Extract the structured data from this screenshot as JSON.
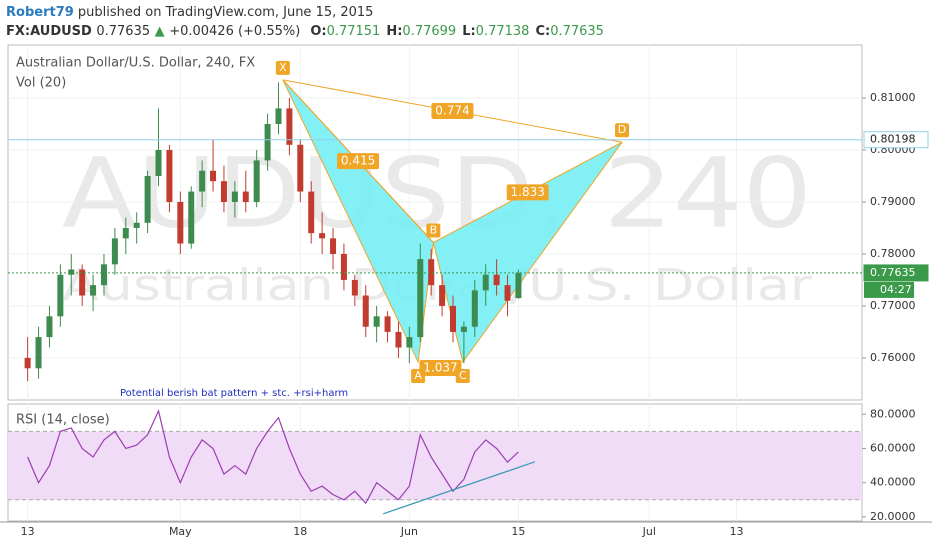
{
  "header": {
    "author": "Robert79",
    "published": "published on TradingView.com, June 15, 2015",
    "symbol": "FX:AUDUSD",
    "last": "0.77635",
    "arrow": "▲",
    "change": "+0.00426 (+0.55%)",
    "ohlc": [
      {
        "label": "O:",
        "value": "0.77151"
      },
      {
        "label": "H:",
        "value": "0.77699"
      },
      {
        "label": "L:",
        "value": "0.77138"
      },
      {
        "label": "C:",
        "value": "0.77635"
      }
    ]
  },
  "chart_data": [
    {
      "type": "candlestick",
      "title": "Australian Dollar/U.S. Dollar, 240, FX",
      "indicator": "Vol (20)",
      "watermark": [
        "AUDUSD, 240",
        "Australian Dollar/U.S. Dollar"
      ],
      "annotation": "Potential berish bat pattern + stc. +rsi+harm",
      "x": [
        0,
        1,
        2,
        3,
        4,
        5,
        6,
        7,
        8,
        9,
        10,
        11,
        12,
        13,
        14,
        15,
        16,
        17,
        18,
        19,
        20,
        21,
        22,
        23,
        24,
        25,
        26,
        27,
        28,
        29,
        30,
        31,
        32,
        33,
        34,
        35,
        36,
        37,
        38,
        39,
        40,
        41,
        42,
        43,
        44,
        45
      ],
      "open": [
        0.76,
        0.758,
        0.764,
        0.768,
        0.776,
        0.777,
        0.772,
        0.774,
        0.778,
        0.783,
        0.785,
        0.786,
        0.795,
        0.8,
        0.79,
        0.782,
        0.792,
        0.796,
        0.794,
        0.79,
        0.792,
        0.79,
        0.798,
        0.805,
        0.808,
        0.801,
        0.792,
        0.784,
        0.783,
        0.78,
        0.775,
        0.772,
        0.766,
        0.768,
        0.765,
        0.762,
        0.764,
        0.779,
        0.774,
        0.77,
        0.765,
        0.766,
        0.773,
        0.776,
        0.774,
        0.7715
      ],
      "high": [
        0.764,
        0.766,
        0.77,
        0.778,
        0.78,
        0.778,
        0.776,
        0.78,
        0.785,
        0.787,
        0.788,
        0.796,
        0.808,
        0.801,
        0.792,
        0.793,
        0.798,
        0.802,
        0.797,
        0.794,
        0.796,
        0.8,
        0.807,
        0.813,
        0.81,
        0.802,
        0.794,
        0.788,
        0.785,
        0.782,
        0.776,
        0.774,
        0.77,
        0.769,
        0.767,
        0.766,
        0.782,
        0.781,
        0.776,
        0.772,
        0.767,
        0.775,
        0.778,
        0.779,
        0.776,
        0.777
      ],
      "low": [
        0.7555,
        0.756,
        0.762,
        0.766,
        0.772,
        0.77,
        0.769,
        0.772,
        0.776,
        0.78,
        0.782,
        0.784,
        0.793,
        0.788,
        0.78,
        0.781,
        0.789,
        0.792,
        0.788,
        0.787,
        0.788,
        0.789,
        0.796,
        0.803,
        0.799,
        0.79,
        0.782,
        0.78,
        0.777,
        0.773,
        0.77,
        0.764,
        0.763,
        0.763,
        0.76,
        0.759,
        0.763,
        0.772,
        0.768,
        0.763,
        0.759,
        0.764,
        0.77,
        0.772,
        0.768,
        0.7714
      ],
      "close": [
        0.758,
        0.764,
        0.768,
        0.776,
        0.777,
        0.772,
        0.774,
        0.778,
        0.783,
        0.785,
        0.786,
        0.795,
        0.8,
        0.79,
        0.782,
        0.792,
        0.796,
        0.794,
        0.79,
        0.792,
        0.79,
        0.798,
        0.805,
        0.808,
        0.801,
        0.792,
        0.784,
        0.783,
        0.78,
        0.775,
        0.772,
        0.766,
        0.768,
        0.765,
        0.762,
        0.764,
        0.779,
        0.774,
        0.77,
        0.765,
        0.766,
        0.773,
        0.776,
        0.774,
        0.771,
        0.77635
      ],
      "up_color": "#3d8b4f",
      "down_color": "#c23b2f",
      "xlim": [
        -1.8,
        76.5
      ],
      "ylim": [
        0.7519,
        0.8202
      ],
      "yticks": [
        {
          "value": 0.76,
          "label": "0.76000"
        },
        {
          "value": 0.77,
          "label": "0.77000"
        },
        {
          "value": 0.78,
          "label": "0.78000"
        },
        {
          "value": 0.79,
          "label": "0.79000"
        },
        {
          "value": 0.8,
          "label": "0.80000"
        },
        {
          "value": 0.81,
          "label": "0.81000"
        }
      ],
      "hlines": [
        {
          "value": 0.80198,
          "color": "#8fd0ea"
        },
        {
          "value": 0.77635,
          "color": "#3a9a4a"
        }
      ],
      "countdown": "04:27",
      "pattern": {
        "fill": "#74eef4",
        "color": "#f0a526",
        "points": [
          {
            "label": "X",
            "x": 23.4,
            "y": 0.8135
          },
          {
            "label": "A",
            "x": 35.8,
            "y": 0.7592
          },
          {
            "label": "B",
            "x": 37.2,
            "y": 0.7822
          },
          {
            "label": "C",
            "x": 39.9,
            "y": 0.7592
          },
          {
            "label": "D",
            "x": 54.5,
            "y": 0.8015
          }
        ],
        "ratios": [
          0.415,
          0.774,
          1.833,
          1.037
        ]
      }
    },
    {
      "type": "line",
      "title": "RSI (14, close)",
      "color": "#9b3fb0",
      "x": [
        0,
        1,
        2,
        3,
        4,
        5,
        6,
        7,
        8,
        9,
        10,
        11,
        12,
        13,
        14,
        15,
        16,
        17,
        18,
        19,
        20,
        21,
        22,
        23,
        24,
        25,
        26,
        27,
        28,
        29,
        30,
        31,
        32,
        33,
        34,
        35,
        36,
        37,
        38,
        39,
        40,
        41,
        42,
        43,
        44,
        45
      ],
      "values": [
        55,
        40,
        50,
        70,
        72,
        60,
        55,
        65,
        70,
        60,
        62,
        68,
        82,
        55,
        40,
        55,
        65,
        60,
        45,
        50,
        45,
        60,
        70,
        78,
        60,
        45,
        35,
        38,
        33,
        30,
        35,
        28,
        40,
        35,
        30,
        38,
        68,
        55,
        45,
        35,
        42,
        58,
        65,
        60,
        52,
        58
      ],
      "ylim": [
        17.6,
        86
      ],
      "band": [
        30,
        70
      ],
      "band_color": "#f1dcf7",
      "yticks": [
        {
          "value": 20,
          "label": "20.0000"
        },
        {
          "value": 40,
          "label": "40.0000"
        },
        {
          "value": 60,
          "label": "60.0000"
        },
        {
          "value": 80,
          "label": "80.0000"
        }
      ],
      "trendline": {
        "color": "#3a9ab5",
        "x": [
          32.6,
          46.5
        ],
        "y": [
          21.8,
          52.2
        ]
      },
      "xlim": [
        -1.8,
        76.5
      ],
      "xticks": [
        {
          "value": 0,
          "label": "13"
        },
        {
          "value": 14,
          "label": "May"
        },
        {
          "value": 25,
          "label": "18"
        },
        {
          "value": 35,
          "label": "Jun"
        },
        {
          "value": 45,
          "label": "15"
        },
        {
          "value": 57,
          "label": "Jul"
        },
        {
          "value": 65,
          "label": "13"
        }
      ]
    }
  ]
}
